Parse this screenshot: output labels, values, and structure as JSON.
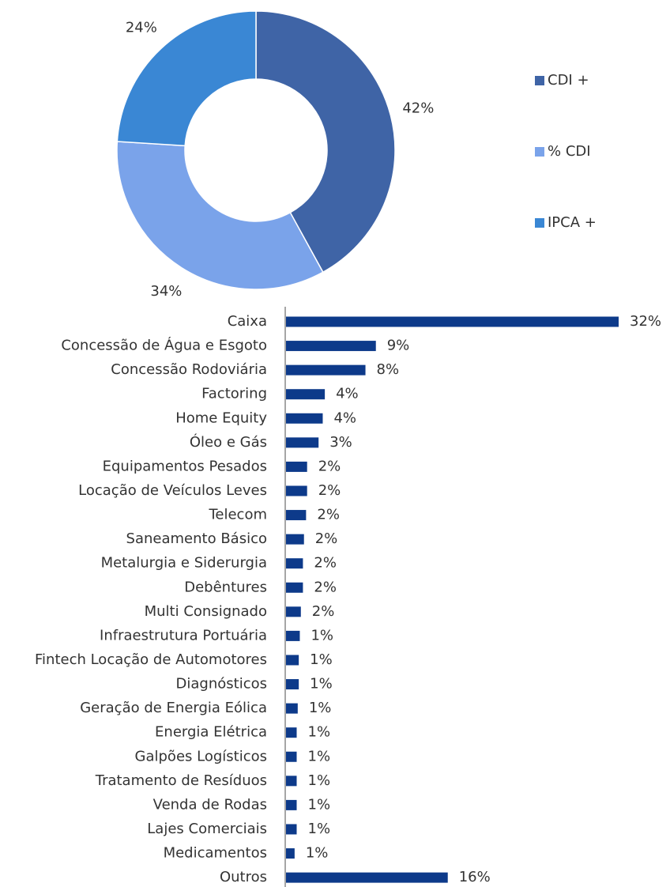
{
  "chart_data": [
    {
      "type": "pie",
      "categories": [
        "CDI +",
        "% CDI",
        "IPCA +"
      ],
      "values": [
        42,
        34,
        24
      ],
      "value_labels": [
        "42%",
        "34%",
        "24%"
      ],
      "colors": [
        "#3f64a6",
        "#7aa3ea",
        "#3a87d4"
      ],
      "legend": "right"
    },
    {
      "type": "barh",
      "categories": [
        "Caixa",
        "Concessão de Água e Esgoto",
        "Concessão Rodoviária",
        "Factoring",
        "Home Equity",
        "Óleo e Gás",
        "Equipamentos Pesados",
        "Locação de Veículos Leves",
        "Telecom",
        "Saneamento Básico",
        "Metalurgia e Siderurgia",
        "Debêntures",
        "Multi Consignado",
        "Infraestrutura Portuária",
        "Fintech Locação de Automotores",
        "Diagnósticos",
        "Geração de Energia Eólica",
        "Energia Elétrica",
        "Galpões Logísticos",
        "Tratamento de Resíduos",
        "Venda de Rodas",
        "Lajes Comerciais",
        "Medicamentos",
        "Outros"
      ],
      "values": [
        32.0,
        8.7,
        7.7,
        3.8,
        3.6,
        3.2,
        2.1,
        2.1,
        2.0,
        1.8,
        1.7,
        1.7,
        1.5,
        1.4,
        1.3,
        1.3,
        1.2,
        1.1,
        1.1,
        1.1,
        1.1,
        1.1,
        0.9,
        15.6
      ],
      "value_labels": [
        "32%",
        "9%",
        "8%",
        "4%",
        "4%",
        "3%",
        "2%",
        "2%",
        "2%",
        "2%",
        "2%",
        "2%",
        "2%",
        "1%",
        "1%",
        "1%",
        "1%",
        "1%",
        "1%",
        "1%",
        "1%",
        "1%",
        "1%",
        "16%"
      ],
      "color": "#0d3a8a",
      "xlim": [
        0,
        32
      ]
    }
  ]
}
